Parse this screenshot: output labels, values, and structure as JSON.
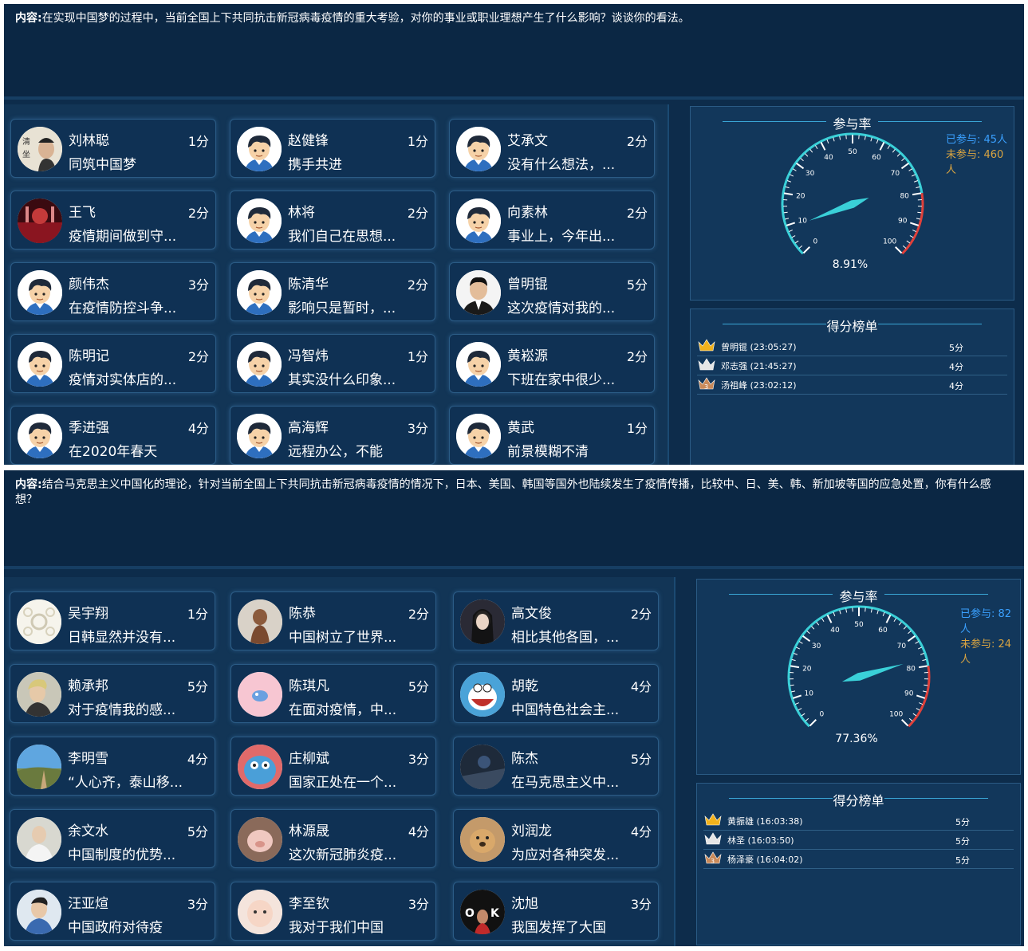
{
  "panels": [
    {
      "topic_label": "内容:",
      "topic_text": "在实现中国梦的过程中，当前全国上下共同抗击新冠病毒疫情的重大考验，对你的事业或职业理想产生了什么影响？谈谈你的看法。",
      "cards": [
        {
          "name": "刘林聪",
          "score": "1分",
          "text": "同筑中国梦",
          "avatar": "photo-calligraphy"
        },
        {
          "name": "赵健锋",
          "score": "1分",
          "text": "携手共进",
          "avatar": "cartoon-boy"
        },
        {
          "name": "艾承文",
          "score": "2分",
          "text": "没有什么想法，...",
          "avatar": "cartoon-boy"
        },
        {
          "name": "王飞",
          "score": "2分",
          "text": "疫情期间做到守...",
          "avatar": "photo-red-stage"
        },
        {
          "name": "林将",
          "score": "2分",
          "text": "我们自己在思想...",
          "avatar": "cartoon-boy"
        },
        {
          "name": "向素林",
          "score": "2分",
          "text": "事业上，今年出...",
          "avatar": "cartoon-boy"
        },
        {
          "name": "颜伟杰",
          "score": "3分",
          "text": "在疫情防控斗争...",
          "avatar": "cartoon-boy"
        },
        {
          "name": "陈清华",
          "score": "2分",
          "text": "影响只是暂时，...",
          "avatar": "cartoon-boy"
        },
        {
          "name": "曾明锟",
          "score": "5分",
          "text": "这次疫情对我的...",
          "avatar": "photo-man-suit"
        },
        {
          "name": "陈明记",
          "score": "2分",
          "text": "疫情对实体店的...",
          "avatar": "cartoon-boy"
        },
        {
          "name": "冯智炜",
          "score": "1分",
          "text": "其实没什么印象...",
          "avatar": "cartoon-boy"
        },
        {
          "name": "黄崧源",
          "score": "2分",
          "text": "下班在家中很少...",
          "avatar": "cartoon-boy"
        },
        {
          "name": "季进强",
          "score": "4分",
          "text": "在2020年春天",
          "avatar": "cartoon-boy"
        },
        {
          "name": "高海辉",
          "score": "3分",
          "text": "远程办公，不能",
          "avatar": "cartoon-boy"
        },
        {
          "name": "黄武",
          "score": "1分",
          "text": "前景模糊不清",
          "avatar": "cartoon-boy"
        }
      ],
      "gauge": {
        "title": "参与率",
        "value_text": "8.91%",
        "value": 8.91,
        "ticks": [
          "0",
          "10",
          "20",
          "30",
          "40",
          "50",
          "60",
          "70",
          "80",
          "90",
          "100"
        ]
      },
      "legend": {
        "joined": "已参与: 45人",
        "not_joined": "未参与: 460人"
      },
      "ranking": {
        "title": "得分榜单",
        "rows": [
          {
            "name": "曾明锟 (23:05:27)",
            "score": "5分",
            "crown": "gold"
          },
          {
            "name": "邓志强 (21:45:27)",
            "score": "4分",
            "crown": "silver"
          },
          {
            "name": "汤祖峰 (23:02:12)",
            "score": "4分",
            "crown": "bronze"
          }
        ]
      }
    },
    {
      "topic_label": "内容:",
      "topic_text": "结合马克思主义中国化的理论，针对当前全国上下共同抗击新冠病毒疫情的情况下，日本、美国、韩国等国外也陆续发生了疫情传播，比较中、日、美、韩、新加坡等国的应急处置，你有什么感想？",
      "cards": [
        {
          "name": "吴宇翔",
          "score": "1分",
          "text": "日韩显然并没有...",
          "avatar": "photo-flower"
        },
        {
          "name": "陈恭",
          "score": "2分",
          "text": "中国树立了世界...",
          "avatar": "photo-child"
        },
        {
          "name": "高文俊",
          "score": "2分",
          "text": "相比其他各国，...",
          "avatar": "photo-girl-dark"
        },
        {
          "name": "赖承邦",
          "score": "5分",
          "text": "对于疫情我的感...",
          "avatar": "photo-man-light"
        },
        {
          "name": "陈琪凡",
          "score": "5分",
          "text": "在面对疫情，中...",
          "avatar": "photo-pink"
        },
        {
          "name": "胡乾",
          "score": "4分",
          "text": "中国特色社会主...",
          "avatar": "photo-doraemon"
        },
        {
          "name": "李明雪",
          "score": "4分",
          "text": "“人心齐，泰山移...",
          "avatar": "photo-landscape"
        },
        {
          "name": "庄柳斌",
          "score": "3分",
          "text": "国家正处在一个...",
          "avatar": "photo-blue-monster"
        },
        {
          "name": "陈杰",
          "score": "5分",
          "text": "在马克思主义中...",
          "avatar": "photo-night"
        },
        {
          "name": "余文水",
          "score": "5分",
          "text": "中国制度的优势...",
          "avatar": "photo-man-white"
        },
        {
          "name": "林源晟",
          "score": "4分",
          "text": "这次新冠肺炎疫...",
          "avatar": "photo-pig"
        },
        {
          "name": "刘润龙",
          "score": "4分",
          "text": "为应对各种突发...",
          "avatar": "photo-dog"
        },
        {
          "name": "汪亚煊",
          "score": "3分",
          "text": "中国政府对待疫",
          "avatar": "photo-man-blue"
        },
        {
          "name": "李至钦",
          "score": "3分",
          "text": "我对于我们中国",
          "avatar": "photo-baby"
        },
        {
          "name": "沈旭",
          "score": "3分",
          "text": "我国发挥了大国",
          "avatar": "photo-ok"
        }
      ],
      "gauge": {
        "title": "参与率",
        "value_text": "77.36%",
        "value": 77.36,
        "ticks": [
          "0",
          "10",
          "20",
          "30",
          "40",
          "50",
          "60",
          "70",
          "80",
          "90",
          "100"
        ]
      },
      "legend": {
        "joined": "已参与: 82人",
        "not_joined": "未参与: 24人"
      },
      "ranking": {
        "title": "得分榜单",
        "rows": [
          {
            "name": "黄振雄 (16:03:38)",
            "score": "5分",
            "crown": "gold"
          },
          {
            "name": "林圣 (16:03:50)",
            "score": "5分",
            "crown": "silver"
          },
          {
            "name": "杨泽豪 (16:04:02)",
            "score": "5分",
            "crown": "bronze"
          }
        ]
      }
    }
  ],
  "colors": {
    "background": "#0d2c4b",
    "card": "#0f3154",
    "accent": "#3ad0d8",
    "joined": "#3aa0ff",
    "not_joined": "#d9a441",
    "danger": "#e0403a"
  }
}
